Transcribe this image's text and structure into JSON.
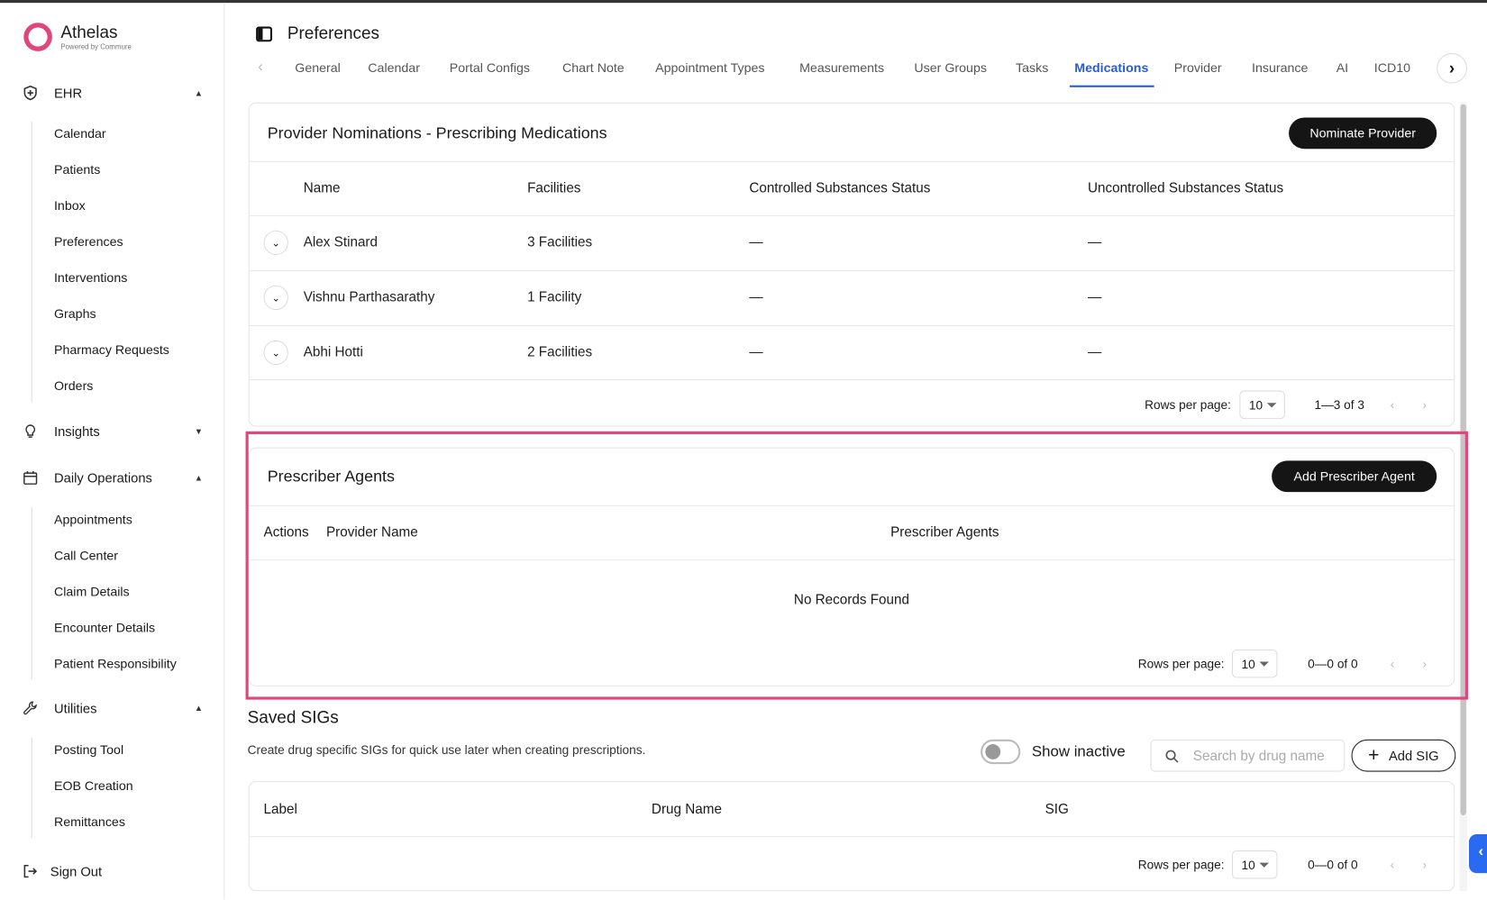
{
  "app": {
    "brand": "Athelas",
    "tagline": "Powered by Commure",
    "brand_color": "#e0457b",
    "accent": "#2a5bd7"
  },
  "sidebar": {
    "sections": [
      {
        "label": "EHR",
        "icon": "shield-plus-icon",
        "expanded": true,
        "items": [
          "Calendar",
          "Patients",
          "Inbox",
          "Preferences",
          "Interventions",
          "Graphs",
          "Pharmacy Requests",
          "Orders"
        ]
      },
      {
        "label": "Insights",
        "icon": "lightbulb-icon",
        "expanded": false,
        "items": []
      },
      {
        "label": "Daily Operations",
        "icon": "calendar-icon",
        "expanded": true,
        "items": [
          "Appointments",
          "Call Center",
          "Claim Details",
          "Encounter Details",
          "Patient Responsibility"
        ]
      },
      {
        "label": "Utilities",
        "icon": "wrench-icon",
        "expanded": true,
        "items": [
          "Posting Tool",
          "EOB Creation",
          "Remittances"
        ]
      }
    ],
    "sign_out": "Sign Out"
  },
  "header": {
    "title": "Preferences"
  },
  "tabs": {
    "items": [
      "General",
      "Calendar",
      "Portal Configs",
      "Chart Note",
      "Appointment Types",
      "Measurements",
      "User Groups",
      "Tasks",
      "Medications",
      "Provider",
      "Insurance",
      "AI",
      "ICD10"
    ],
    "active": "Medications"
  },
  "nominations": {
    "title": "Provider Nominations - Prescribing Medications",
    "button": "Nominate Provider",
    "columns": [
      "Name",
      "Facilities",
      "Controlled Substances Status",
      "Uncontrolled Substances Status"
    ],
    "rows": [
      {
        "name": "Alex Stinard",
        "facilities": "3 Facilities",
        "controlled": "—",
        "uncontrolled": "—"
      },
      {
        "name": "Vishnu Parthasarathy",
        "facilities": "1 Facility",
        "controlled": "—",
        "uncontrolled": "—"
      },
      {
        "name": "Abhi Hotti",
        "facilities": "2 Facilities",
        "controlled": "—",
        "uncontrolled": "—"
      }
    ],
    "rows_per_page_label": "Rows per page:",
    "rows_per_page": "10",
    "range": "1—3 of 3"
  },
  "agents": {
    "title": "Prescriber Agents",
    "button": "Add Prescriber Agent",
    "columns": [
      "Actions",
      "Provider Name",
      "Prescriber Agents"
    ],
    "empty": "No Records Found",
    "rows_per_page_label": "Rows per page:",
    "rows_per_page": "10",
    "range": "0—0 of 0"
  },
  "sigs": {
    "title": "Saved SIGs",
    "description": "Create drug specific SIGs for quick use later when creating prescriptions.",
    "show_inactive": "Show inactive",
    "show_inactive_on": false,
    "search_placeholder": "Search by drug name",
    "button": "Add SIG",
    "columns": [
      "Label",
      "Drug Name",
      "SIG"
    ],
    "rows_per_page_label": "Rows per page:",
    "rows_per_page": "10",
    "range": "0—0 of 0"
  }
}
